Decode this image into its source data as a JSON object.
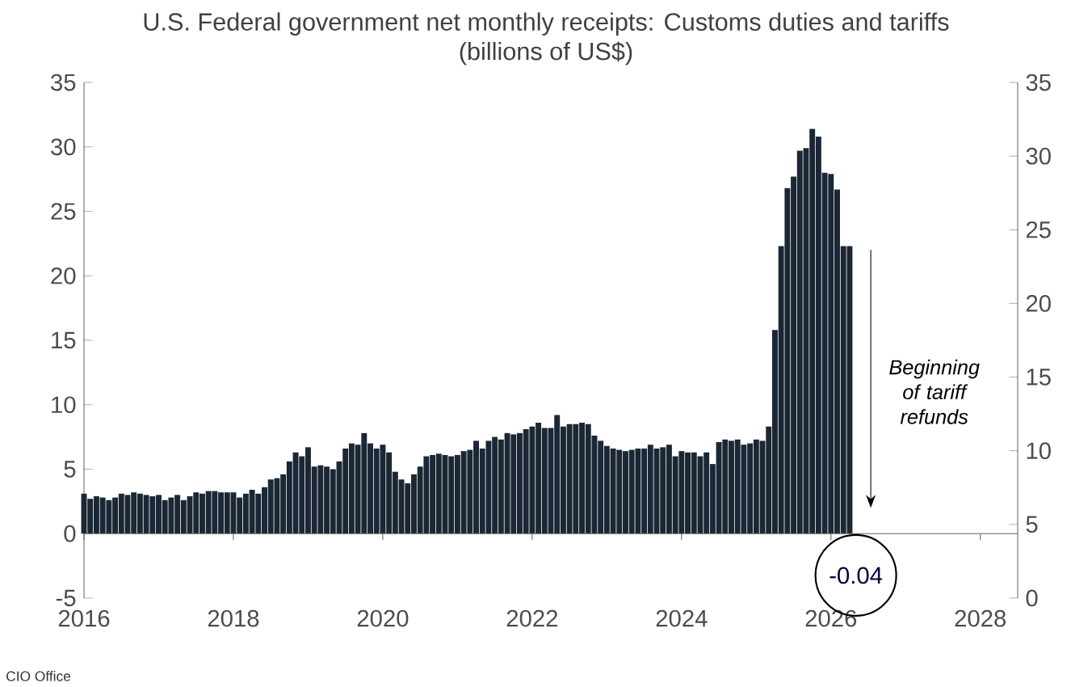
{
  "chart_data": {
    "type": "bar",
    "title": "U.S. Federal government net monthly receipts: Customs duties and tariffs",
    "subtitle": "(billions of US$)",
    "x": [
      "2016-01",
      "2016-02",
      "2016-03",
      "2016-04",
      "2016-05",
      "2016-06",
      "2016-07",
      "2016-08",
      "2016-09",
      "2016-10",
      "2016-11",
      "2016-12",
      "2017-01",
      "2017-02",
      "2017-03",
      "2017-04",
      "2017-05",
      "2017-06",
      "2017-07",
      "2017-08",
      "2017-09",
      "2017-10",
      "2017-11",
      "2017-12",
      "2018-01",
      "2018-02",
      "2018-03",
      "2018-04",
      "2018-05",
      "2018-06",
      "2018-07",
      "2018-08",
      "2018-09",
      "2018-10",
      "2018-11",
      "2018-12",
      "2019-01",
      "2019-02",
      "2019-03",
      "2019-04",
      "2019-05",
      "2019-06",
      "2019-07",
      "2019-08",
      "2019-09",
      "2019-10",
      "2019-11",
      "2019-12",
      "2020-01",
      "2020-02",
      "2020-03",
      "2020-04",
      "2020-05",
      "2020-06",
      "2020-07",
      "2020-08",
      "2020-09",
      "2020-10",
      "2020-11",
      "2020-12",
      "2021-01",
      "2021-02",
      "2021-03",
      "2021-04",
      "2021-05",
      "2021-06",
      "2021-07",
      "2021-08",
      "2021-09",
      "2021-10",
      "2021-11",
      "2021-12",
      "2022-01",
      "2022-02",
      "2022-03",
      "2022-04",
      "2022-05",
      "2022-06",
      "2022-07",
      "2022-08",
      "2022-09",
      "2022-10",
      "2022-11",
      "2022-12",
      "2023-01",
      "2023-02",
      "2023-03",
      "2023-04",
      "2023-05",
      "2023-06",
      "2023-07",
      "2023-08",
      "2023-09",
      "2023-10",
      "2023-11",
      "2023-12",
      "2024-01",
      "2024-02",
      "2024-03",
      "2024-04",
      "2024-05",
      "2024-06",
      "2024-07",
      "2024-08",
      "2024-09",
      "2024-10",
      "2024-11",
      "2024-12",
      "2025-01",
      "2025-02",
      "2025-03",
      "2025-04",
      "2025-05",
      "2025-06",
      "2025-07",
      "2025-08",
      "2025-09",
      "2025-10",
      "2025-11",
      "2025-12",
      "2026-01",
      "2026-02",
      "2026-03",
      "2026-04",
      "2026-05"
    ],
    "values": [
      3.1,
      2.7,
      2.9,
      2.8,
      2.6,
      2.8,
      3.1,
      3.0,
      3.2,
      3.1,
      3.0,
      2.9,
      3.0,
      2.6,
      2.8,
      3.0,
      2.6,
      2.9,
      3.2,
      3.1,
      3.3,
      3.3,
      3.2,
      3.2,
      3.2,
      2.8,
      3.1,
      3.4,
      3.1,
      3.6,
      4.2,
      4.3,
      4.6,
      5.6,
      6.3,
      6.0,
      6.7,
      5.2,
      5.3,
      5.2,
      5.0,
      5.6,
      6.6,
      7.0,
      6.9,
      7.8,
      7.0,
      6.6,
      6.9,
      6.3,
      4.8,
      4.2,
      3.9,
      4.6,
      5.2,
      6.0,
      6.1,
      6.2,
      6.1,
      6.0,
      6.1,
      6.4,
      6.5,
      7.2,
      6.6,
      7.2,
      7.5,
      7.3,
      7.8,
      7.7,
      7.8,
      8.1,
      8.3,
      8.6,
      8.2,
      8.2,
      9.2,
      8.3,
      8.5,
      8.5,
      8.6,
      8.5,
      7.6,
      7.2,
      6.8,
      6.6,
      6.5,
      6.4,
      6.5,
      6.6,
      6.6,
      6.9,
      6.6,
      6.7,
      6.9,
      6.0,
      6.4,
      6.3,
      6.3,
      6.0,
      6.3,
      5.4,
      7.1,
      7.3,
      7.2,
      7.3,
      6.9,
      7.0,
      7.3,
      7.2,
      8.3,
      15.8,
      22.3,
      26.8,
      27.7,
      29.7,
      29.9,
      31.4,
      30.8,
      28.0,
      27.9,
      26.7,
      22.3,
      22.3,
      -0.04
    ],
    "value_labels": [
      null,
      null,
      null,
      null,
      null,
      null,
      null,
      null,
      null,
      null,
      null,
      null,
      null,
      null,
      null,
      null,
      null,
      null,
      null,
      null,
      null,
      null,
      null,
      null,
      null,
      null,
      null,
      null,
      null,
      null,
      null,
      null,
      null,
      null,
      null,
      null,
      null,
      null,
      null,
      null,
      null,
      null,
      null,
      null,
      null,
      null,
      null,
      null,
      null,
      null,
      null,
      null,
      null,
      null,
      null,
      null,
      null,
      null,
      null,
      null,
      null,
      null,
      null,
      null,
      null,
      null,
      null,
      null,
      null,
      null,
      null,
      null,
      null,
      null,
      null,
      null,
      null,
      null,
      null,
      null,
      null,
      null,
      null,
      null,
      null,
      null,
      null,
      null,
      null,
      null,
      null,
      null,
      null,
      null,
      null,
      null,
      null,
      null,
      null,
      null,
      null,
      null,
      null,
      null,
      null,
      null,
      null,
      null,
      null,
      null,
      null,
      null,
      null,
      null,
      null,
      null,
      null,
      null,
      null,
      null,
      null,
      null,
      null,
      null,
      "-0.04"
    ],
    "color": "#1b2735",
    "xlim": [
      "2016-01",
      "2028-07"
    ],
    "xticks": [
      "2016",
      "2018",
      "2020",
      "2022",
      "2024",
      "2026",
      "2028"
    ],
    "ylim": [
      -5,
      35
    ],
    "yticks": [
      -5,
      0,
      5,
      10,
      15,
      20,
      25,
      30,
      35
    ],
    "y2lim": [
      0,
      35
    ],
    "y2ticks": [
      0,
      5,
      10,
      15,
      20,
      25,
      30,
      35
    ],
    "annotations": [
      "Beginning of tariff refunds",
      "CIO Office"
    ]
  }
}
